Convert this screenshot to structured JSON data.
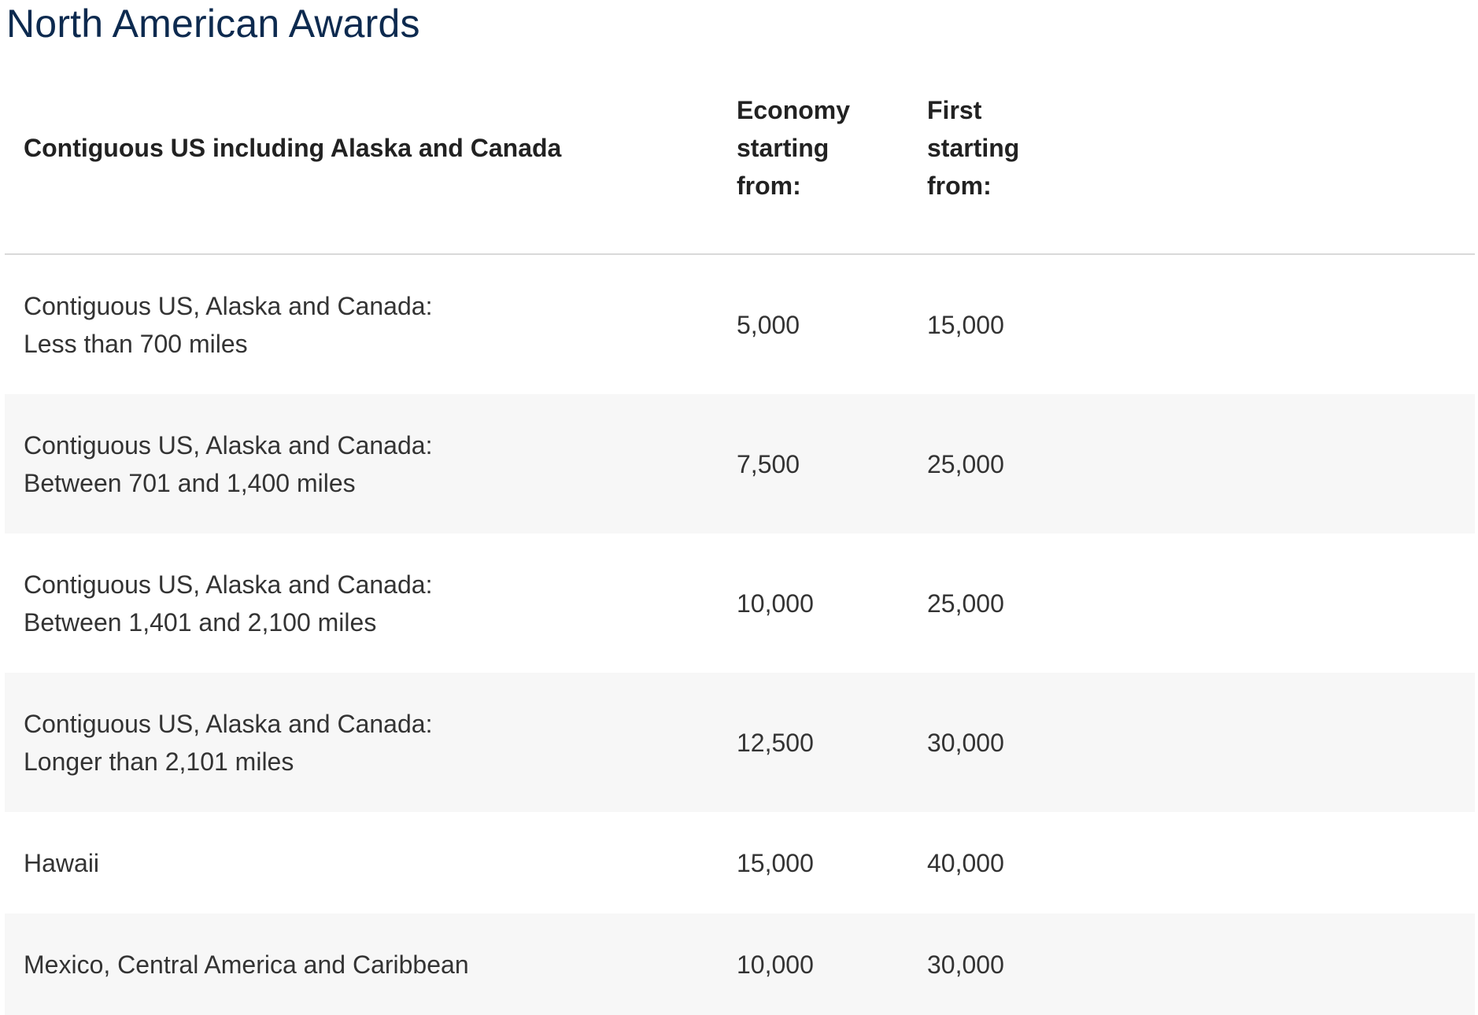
{
  "title": "North American Awards",
  "headers": {
    "region": "Contiguous US including Alaska and Canada",
    "economy": [
      "Economy",
      "starting",
      "from:"
    ],
    "first": [
      "First",
      "starting",
      "from:"
    ]
  },
  "rows": [
    {
      "region_line1": "Contiguous US, Alaska and Canada:",
      "region_line2": "Less than 700 miles",
      "economy": "5,000",
      "first": "15,000"
    },
    {
      "region_line1": "Contiguous US, Alaska and Canada:",
      "region_line2": "Between 701 and 1,400 miles",
      "economy": "7,500",
      "first": "25,000"
    },
    {
      "region_line1": "Contiguous US, Alaska and Canada:",
      "region_line2": "Between 1,401 and 2,100 miles",
      "economy": "10,000",
      "first": "25,000"
    },
    {
      "region_line1": "Contiguous US, Alaska and Canada:",
      "region_line2": "Longer than 2,101 miles",
      "economy": "12,500",
      "first": "30,000"
    },
    {
      "region_line1": "Hawaii",
      "economy": "15,000",
      "first": "40,000"
    },
    {
      "region_line1": "Mexico, Central America and Caribbean",
      "economy": "10,000",
      "first": "30,000"
    }
  ],
  "colors": {
    "title": "#0d2a4f",
    "row_alt_background": "#f7f7f7",
    "header_rule": "#d9d9d9"
  }
}
